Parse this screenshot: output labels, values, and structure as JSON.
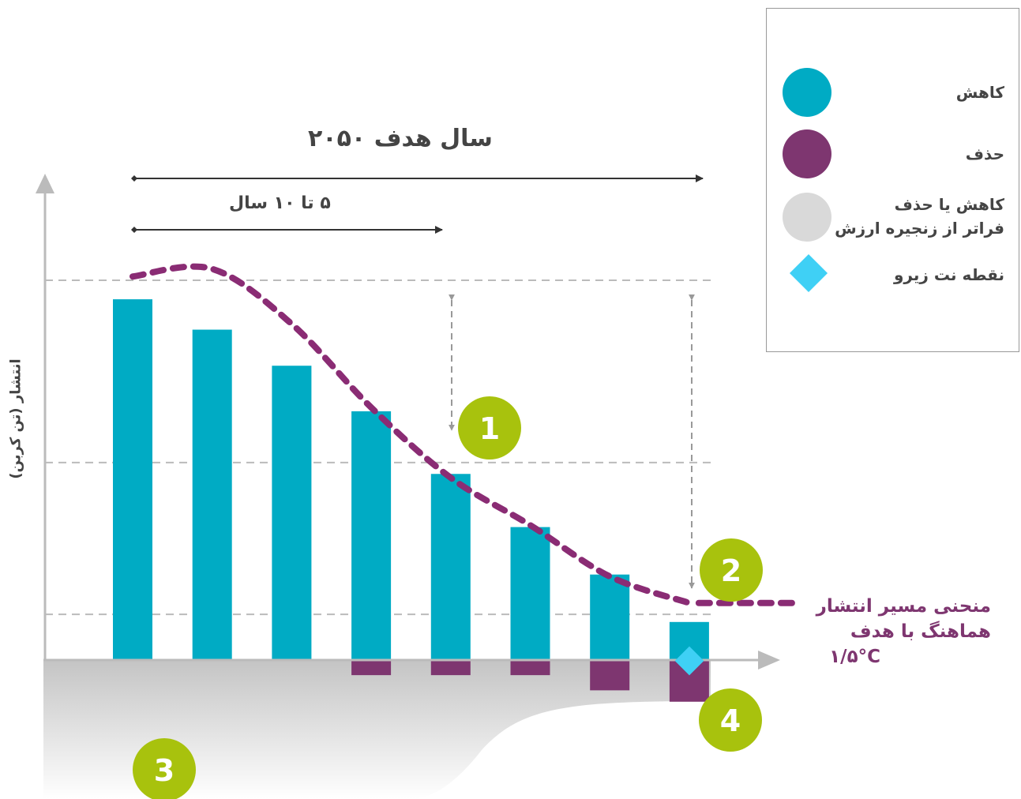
{
  "chart_data": {
    "type": "bar",
    "title": "سال هدف ۲۰۵۰",
    "subtitle": "۵ تا ۱۰ سال",
    "y_label": "انتشار (تن کربن)",
    "categories": [
      null,
      null,
      null,
      null,
      null,
      null,
      null,
      null
    ],
    "series": [
      {
        "name": "کاهش",
        "color": "#00abc4",
        "values": [
          95,
          87,
          77.5,
          65.5,
          49,
          35,
          22.5,
          10
        ]
      },
      {
        "name": "حذف",
        "color": "#7e3670",
        "values": [
          null,
          null,
          null,
          -4,
          -4,
          -4,
          -8,
          -11
        ]
      },
      {
        "type": "line",
        "color": "#8a2c74",
        "values": [
          101,
          103,
          88.5,
          66.5,
          48,
          35.5,
          22,
          15
        ],
        "label_lines": [
          "منحنی مسیر انتشار",
          "هماهنگ با هدف",
          "۱/۵°C"
        ]
      }
    ],
    "legend_extra": [
      {
        "name_lines": [
          "کاهش یا حذف",
          "فراتر از زنجیره ارزش"
        ],
        "color": "#d9d9d9"
      },
      {
        "name": "نقطه نت زیرو",
        "color": "#3fd0f5"
      }
    ],
    "reference_lines": [
      100,
      52,
      12
    ],
    "annotations": [
      "1",
      "2",
      "3",
      "4"
    ],
    "ylim": [
      -36,
      126
    ]
  }
}
